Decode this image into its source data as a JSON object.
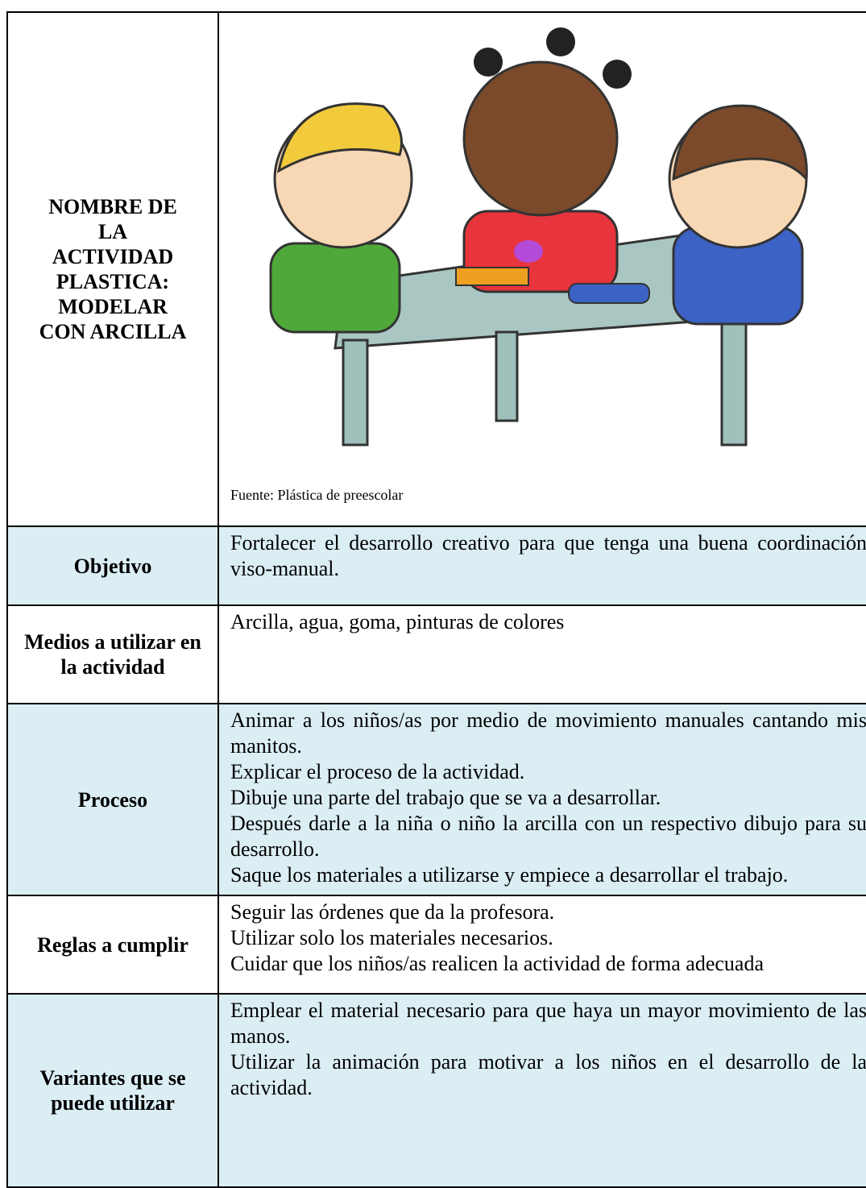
{
  "header": {
    "activity_label": [
      "NOMBRE DE",
      "LA",
      "ACTIVIDAD",
      "PLASTICA:",
      "MODELAR",
      "CON ARCILLA"
    ],
    "image_caption": "Fuente: Plástica de preescolar"
  },
  "table": {
    "rows": [
      {
        "label": "Objetivo",
        "content": [
          "Fortalecer el desarrollo creativo para que tenga una buena coordinación viso-manual."
        ]
      },
      {
        "label": "Medios a utilizar en la actividad",
        "content": [
          "Arcilla, agua, goma, pinturas de colores"
        ]
      },
      {
        "label": "Proceso",
        "content": [
          "Animar a los niños/as por medio de movimiento manuales cantando mis manitos.",
          "Explicar el proceso de la actividad.",
          "Dibuje una parte del trabajo que se va a desarrollar.",
          "Después darle a la niña o niño la arcilla con un respectivo dibujo para su desarrollo.",
          "Saque los materiales a utilizarse y empiece a desarrollar el trabajo."
        ]
      },
      {
        "label": "Reglas a cumplir",
        "content": [
          "Seguir las órdenes que da la profesora.",
          "Utilizar solo los materiales necesarios.",
          "Cuidar que los niños/as realicen la actividad de forma adecuada"
        ]
      },
      {
        "label": "Variantes que se puede utilizar",
        "content": [
          "Emplear el material necesario para que haya un mayor movimiento de las manos.",
          "Utilizar la animación para motivar a los niños en el desarrollo de la actividad."
        ]
      }
    ]
  }
}
